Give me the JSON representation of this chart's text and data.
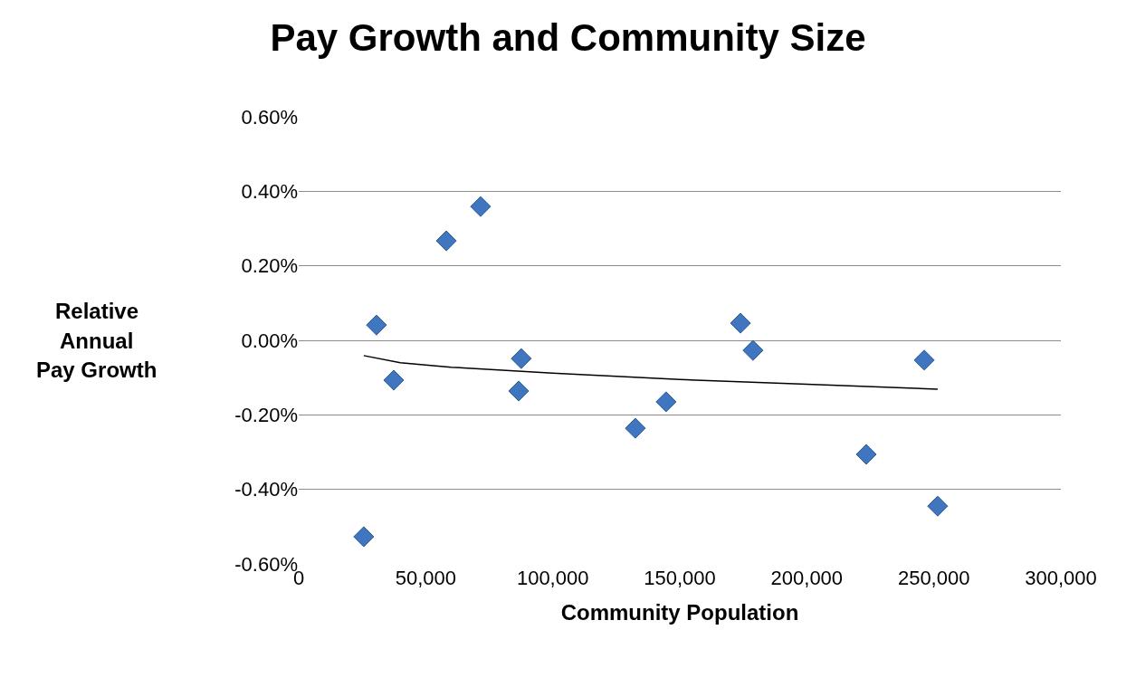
{
  "chart_data": {
    "type": "scatter",
    "title": "Pay Growth and Community Size",
    "xlabel": "Community Population",
    "ylabel": "Relative Annual Pay Growth",
    "xlim": [
      0,
      300000
    ],
    "xticks": [
      {
        "value": 0,
        "label": "0"
      },
      {
        "value": 50000,
        "label": "50,000"
      },
      {
        "value": 100000,
        "label": "100,000"
      },
      {
        "value": 150000,
        "label": "150,000"
      },
      {
        "value": 200000,
        "label": "200,000"
      },
      {
        "value": 250000,
        "label": "250,000"
      },
      {
        "value": 300000,
        "label": "300,000"
      }
    ],
    "ylim": [
      -0.6,
      0.6
    ],
    "yticks": [
      {
        "value": -0.6,
        "label": "-0.60%"
      },
      {
        "value": -0.4,
        "label": "-0.40%"
      },
      {
        "value": -0.2,
        "label": "-0.20%"
      },
      {
        "value": 0,
        "label": "0.00%"
      },
      {
        "value": 0.2,
        "label": "0.20%"
      },
      {
        "value": 0.4,
        "label": "0.40%"
      },
      {
        "value": 0.6,
        "label": "0.60%"
      }
    ],
    "grid": "y",
    "series": [
      {
        "marker": "diamond",
        "color": "#3f76bf",
        "x": [
          25600,
          30600,
          37400,
          58100,
          71600,
          86600,
          87600,
          132500,
          144600,
          173900,
          178800,
          223400,
          246200,
          251500
        ],
        "values": [
          -0.527,
          0.041,
          -0.107,
          0.267,
          0.359,
          -0.136,
          -0.049,
          -0.236,
          -0.165,
          0.046,
          -0.027,
          -0.306,
          -0.053,
          -0.445
        ]
      },
      {
        "type": "line",
        "color": "#000000",
        "line_style": "solid",
        "x": [
          25600,
          40000,
          60000,
          100000,
          150000,
          200000,
          251500
        ],
        "values": [
          -0.041,
          -0.06,
          -0.072,
          -0.088,
          -0.105,
          -0.118,
          -0.131
        ]
      }
    ]
  }
}
